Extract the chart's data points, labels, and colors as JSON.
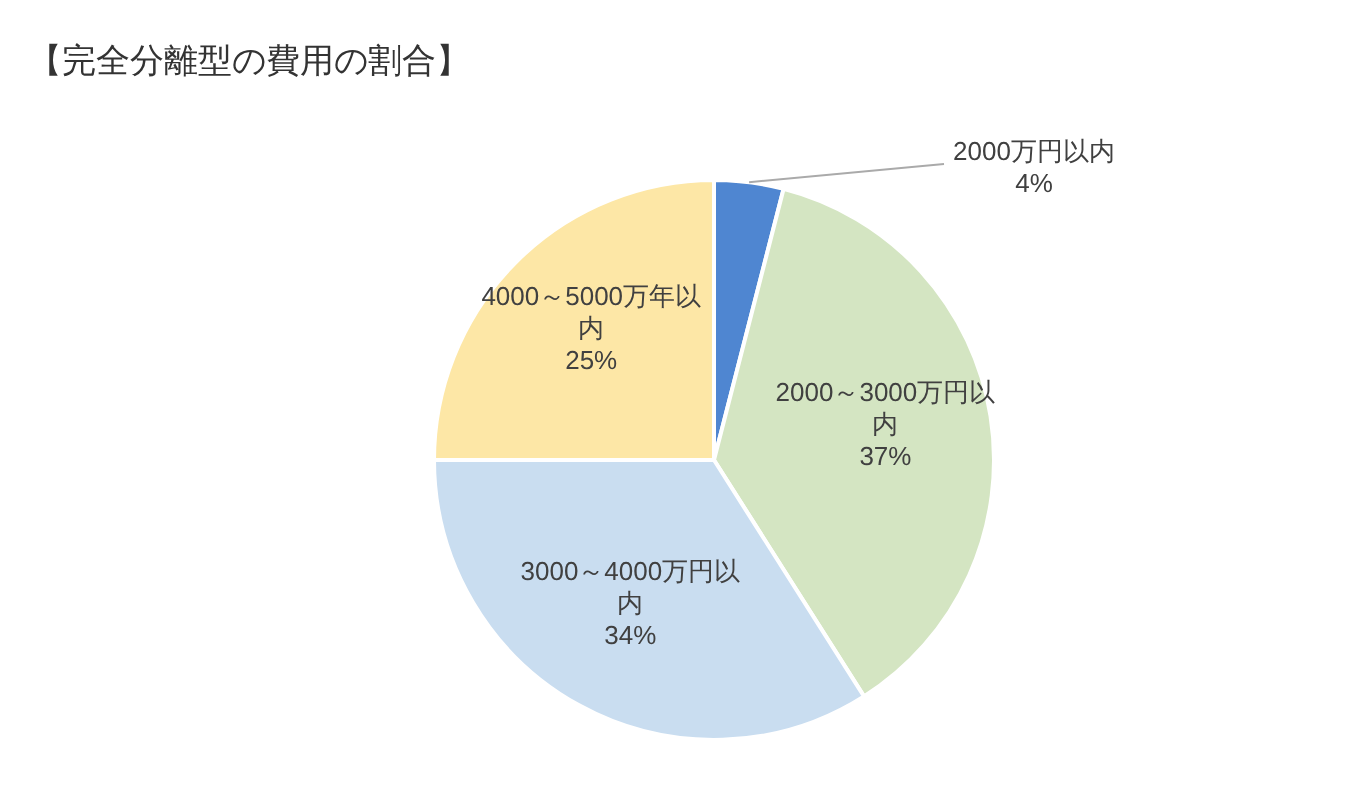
{
  "chart_data": {
    "type": "pie",
    "title": "【完全分離型の費用の割合】",
    "categories": [
      "2000万円以内",
      "2000～3000万円以内",
      "3000～4000万円以内",
      "4000～5000万年以内"
    ],
    "values": [
      4,
      37,
      34,
      25
    ],
    "colors": [
      "#4f86d1",
      "#d4e5c2",
      "#c9ddf0",
      "#fde7a6"
    ],
    "value_labels": [
      "4%",
      "37%",
      "34%",
      "25%"
    ]
  }
}
